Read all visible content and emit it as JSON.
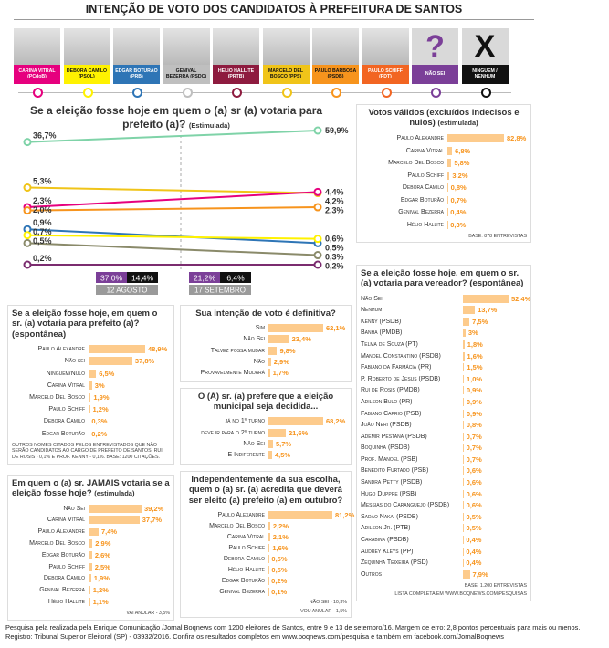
{
  "header": {
    "title": "INTENÇÃO DE VOTO DOS CANDIDATOS À PREFEITURA DE SANTOS",
    "candidates": [
      {
        "label": "CARINA VITRAL (PCdoB)",
        "color": "#e6007e"
      },
      {
        "label": "DEBORA CAMILO (PSOL)",
        "color": "#fff200"
      },
      {
        "label": "EDGAR BOTURÃO (PRB)",
        "color": "#2e75b6"
      },
      {
        "label": "GENIVAL BEZERRA (PSDC)",
        "color": "#bfbfbf"
      },
      {
        "label": "HÉLIO HALLITE (PRTB)",
        "color": "#8e1b3f"
      },
      {
        "label": "MARCELO DEL BOSCO (PPS)",
        "color": "#f0c419"
      },
      {
        "label": "PAULO BARBOSA (PSDB)",
        "color": "#f7941d"
      },
      {
        "label": "PAULO SCHIFF (PDT)",
        "color": "#f26522"
      },
      {
        "label": "NÃO SEI",
        "symbol": "?",
        "color": "#7b3f98"
      },
      {
        "label": "NINGUÉM / NENHUM",
        "symbol": "X",
        "color": "#111111"
      }
    ]
  },
  "chart_data": [
    {
      "type": "slope",
      "title": "Se a eleição fosse hoje em quem o (a) sr (a) votaria para prefeito (a)?",
      "subtitle": "(Estimulada)",
      "x": [
        "12 AGOSTO",
        "17 SETEMBRO"
      ],
      "series": [
        {
          "color": "#7fd3a8",
          "values": [
            36.7,
            59.9
          ],
          "value_labels": [
            "36,7%",
            "59,9%"
          ]
        },
        {
          "color": "#f0c419",
          "values": [
            5.3,
            4.2
          ],
          "value_labels": [
            "5,3%",
            "4,2%"
          ]
        },
        {
          "color": "#e6007e",
          "values": [
            2.3,
            4.4
          ],
          "value_labels": [
            "2,3%",
            "4,4%"
          ]
        },
        {
          "color": "#f7941d",
          "values": [
            2.0,
            2.3
          ],
          "value_labels": [
            "2,0%",
            "2,3%"
          ]
        },
        {
          "color": "#2e75b6",
          "values": [
            0.9,
            0.5
          ],
          "value_labels": [
            "0,9%",
            "0,5%"
          ]
        },
        {
          "color": "#fff200",
          "values": [
            0.7,
            0.6
          ],
          "value_labels": [
            "0,7%",
            "0,6%"
          ]
        },
        {
          "color": "#8a8a6a",
          "values": [
            0.5,
            0.3
          ],
          "value_labels": [
            "0,5%",
            "0,3%"
          ]
        },
        {
          "color": "#7b2c6f",
          "values": [
            0.2,
            0.2
          ],
          "value_labels": [
            "0,2%",
            "0,2%"
          ]
        }
      ],
      "boxes": [
        {
          "color": "#7b3f98",
          "values": [
            37.0,
            21.2
          ],
          "value_labels": [
            "37,0%",
            "21,2%"
          ]
        },
        {
          "color": "#111111",
          "values": [
            14.4,
            6.4
          ],
          "value_labels": [
            "14,4%",
            "6,4%"
          ]
        }
      ]
    },
    {
      "type": "bar",
      "title": "Votos válidos (excluídos indecisos e nulos)",
      "subtitle": "(estimulada)",
      "categories": [
        "Paulo Alexandre",
        "Carina Vitral",
        "Marcelo Del Bosco",
        "Paulo Schiff",
        "Debora Camilo",
        "Edgar Boturão",
        "Genival Bezerra",
        "Hélio Hallite"
      ],
      "values": [
        82.8,
        6.8,
        5.8,
        3.2,
        0.8,
        0.7,
        0.4,
        0.3
      ],
      "value_labels": [
        "82,8%",
        "6,8%",
        "5,8%",
        "3,2%",
        "0,8%",
        "0,7%",
        "0,4%",
        "0,3%"
      ],
      "color": "#fdcb8c",
      "notes": [
        "BASE: 878 ENTREVISTAS"
      ]
    },
    {
      "type": "bar",
      "title": "Se a eleição fosse hoje, em quem o sr. (a) votaria para vereador? (espontânea)",
      "categories": [
        "Não Sei",
        "Nenhum",
        "Kenny (PSDB)",
        "Banha (PMDB)",
        "Telma de Souza (PT)",
        "Manoel Constantino (PSDB)",
        "Fabiano da Farmácia (PR)",
        "P. Roberto de Jesus (PSDB)",
        "Rui de Rosis (PMDB)",
        "Adilson Bulo (PR)",
        "Fabiano Caprio (PSB)",
        "João Neri (PSDB)",
        "Ademir Pestana (PSDB)",
        "Boquinha (PSDB)",
        "Prof. Manoel (PSB)",
        "Benedito Furtado (PSB)",
        "Sandra Petty (PSDB)",
        "Hugo Duppre (PSB)",
        "Messias do Caranguejo (PSDB)",
        "Sadao Nakai (PSDB)",
        "Adilson Jr. (PTB)",
        "Carabina (PSDB)",
        "Audrey Kleys (PP)",
        "Zequinha Teixeira (PSD)",
        "Outros"
      ],
      "values": [
        52.4,
        13.7,
        7.5,
        3,
        1.8,
        1.6,
        1.5,
        1.0,
        0.9,
        0.9,
        0.9,
        0.8,
        0.7,
        0.7,
        0.7,
        0.6,
        0.6,
        0.6,
        0.6,
        0.5,
        0.5,
        0.4,
        0.4,
        0.4,
        7.9
      ],
      "value_labels": [
        "52,4%",
        "13,7%",
        "7,5%",
        "3%",
        "1,8%",
        "1,6%",
        "1,5%",
        "1,0%",
        "0,9%",
        "0,9%",
        "0,9%",
        "0,8%",
        "0,7%",
        "0,7%",
        "0,7%",
        "0,6%",
        "0,6%",
        "0,6%",
        "0,6%",
        "0,5%",
        "0,5%",
        "0,4%",
        "0,4%",
        "0,4%",
        "7,9%"
      ],
      "color": "#fdcb8c",
      "notes": [
        "BASE: 1.200 ENTREVISTAS",
        "LISTA COMPLETA EM WWW.BOQNEWS.COM/PESQUISAS"
      ]
    },
    {
      "type": "bar",
      "title": "Se a eleição fosse hoje, em quem o sr. (a) votaria para prefeito (a)? (espontânea)",
      "categories": [
        "Paulo Alexandre",
        "Não sei",
        "Ninguém/Nulo",
        "Carina Vitral",
        "Marcelo Del Bosco",
        "Paulo Schiff",
        "Debora Camilo",
        "Edgar Boturão"
      ],
      "values": [
        48.9,
        37.8,
        6.5,
        3,
        1.9,
        1.2,
        0.3,
        0.2
      ],
      "value_labels": [
        "48,9%",
        "37,8%",
        "6,5%",
        "3%",
        "1,9%",
        "1,2%",
        "0,3%",
        "0,2%"
      ],
      "color": "#fdcb8c",
      "notes": [
        "OUTROS NOMES CITADOS PELOS ENTREVISTADOS QUE NÃO SERÃO CANDIDATOS AO CARGO DE PREFEITO DE SANTOS: RUI DE ROSIS - 0,1% E PROF. KENNY - 0,1%. BASE: 1200 CITAÇÕES."
      ]
    },
    {
      "type": "bar",
      "title": "Sua intenção de voto é definitiva?",
      "categories": [
        "Sim",
        "Não Sei",
        "Talvez possa mudar",
        "Não",
        "Provavelmente Mudará"
      ],
      "values": [
        62.1,
        23.4,
        9.8,
        2.9,
        1.7
      ],
      "value_labels": [
        "62,1%",
        "23,4%",
        "9,8%",
        "2,9%",
        "1,7%"
      ],
      "color": "#fdcb8c"
    },
    {
      "type": "bar",
      "title": "O (A) sr. (a) prefere que a eleição municipal seja decidida...",
      "categories": [
        "já no 1º turno",
        "deve ir para o 2º turno",
        "Não Sei",
        "É Indiferente"
      ],
      "values": [
        68.2,
        21.6,
        5.7,
        4.5
      ],
      "value_labels": [
        "68,2%",
        "21,6%",
        "5,7%",
        "4,5%"
      ],
      "color": "#fdcb8c"
    },
    {
      "type": "bar",
      "title": "Em quem o (a) sr. JAMAIS votaria se a eleição fosse hoje?",
      "subtitle": "(estimulada)",
      "categories": [
        "Não Sei",
        "Carina Vitral",
        "Paulo Alexandre",
        "Marcelo Del Bosco",
        "Edgar Boturão",
        "Paulo Schiff",
        "Debora Camilo",
        "Genival Bezerra",
        "Hélio Hallite"
      ],
      "values": [
        39.2,
        37.7,
        7.4,
        2.9,
        2.6,
        2.5,
        1.9,
        1.2,
        1.1
      ],
      "value_labels": [
        "39,2%",
        "37,7%",
        "7,4%",
        "2,9%",
        "2,6%",
        "2,5%",
        "1,9%",
        "1,2%",
        "1,1%"
      ],
      "color": "#fdcb8c",
      "notes": [
        "VAI ANULAR - 3,5%"
      ]
    },
    {
      "type": "bar",
      "title": "Independentemente da sua escolha, quem o (a) sr. (a) acredita que deverá ser eleito (a) prefeito (a) em outubro?",
      "categories": [
        "Paulo Alexandre",
        "Marcelo Del Bosco",
        "Carina Vitral",
        "Paulo Schiff",
        "Debora Camilo",
        "Hélio Hallite",
        "Edgar Boturão",
        "Genival Bezerra"
      ],
      "values": [
        81.2,
        2.2,
        2.1,
        1.6,
        0.5,
        0.5,
        0.2,
        0.1
      ],
      "value_labels": [
        "81,2%",
        "2,2%",
        "2,1%",
        "1,6%",
        "0,5%",
        "0,5%",
        "0,2%",
        "0,1%"
      ],
      "color": "#fdcb8c",
      "notes": [
        "NÃO SEI - 10,3%",
        "VOU ANULAR - 1,5%"
      ]
    }
  ],
  "footer": {
    "lines": [
      "Pesquisa pela realizada pela Enrique Comunicação /Jornal Boqnews com 1200 eleitores de Santos, entre 9 e 13 de setembro/16. Margem de erro: 2,8 pontos percentuais para mais ou menos.",
      "Registro: Tribunal Superior Eleitoral (SP) - 03932/2016. Confira os resultados completos em www.boqnews.com/pesquisa e também em facebook.com/JornalBoqnews"
    ]
  }
}
